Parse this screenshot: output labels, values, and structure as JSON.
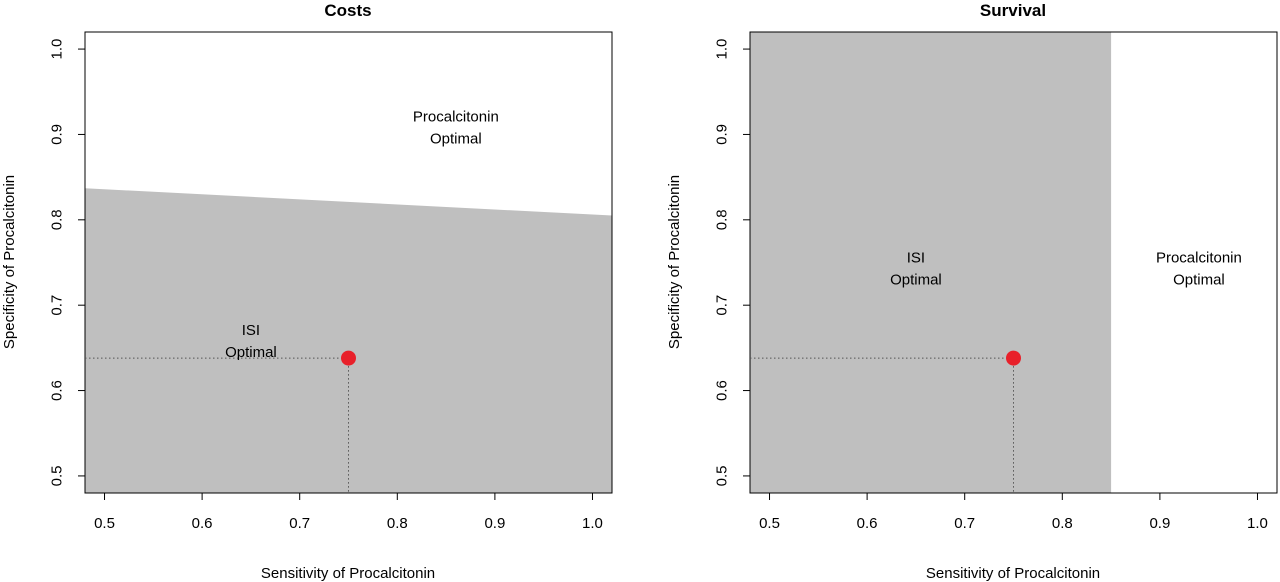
{
  "chart_data": [
    {
      "type": "scatter",
      "title": "Costs",
      "xlabel": "Sensitivity of Procalcitonin",
      "ylabel": "Specificity of Procalcitonin",
      "xlim": [
        0.48,
        1.02
      ],
      "ylim": [
        0.48,
        1.02
      ],
      "x_ticks": [
        "0.5",
        "0.6",
        "0.7",
        "0.8",
        "0.9",
        "1.0"
      ],
      "y_ticks": [
        "0.5",
        "0.6",
        "0.7",
        "0.8",
        "0.9",
        "1.0"
      ],
      "shaded_region": {
        "color": "#bfbfbf",
        "boundary": [
          [
            0.48,
            0.837
          ],
          [
            1.02,
            0.805
          ]
        ],
        "side": "below"
      },
      "region_labels": [
        {
          "lines": [
            "Procalcitonin",
            "Optimal"
          ],
          "x": 0.86,
          "y": 0.915
        },
        {
          "lines": [
            "ISI",
            "Optimal"
          ],
          "x": 0.65,
          "y": 0.665
        }
      ],
      "point": {
        "x": 0.75,
        "y": 0.638,
        "color": "#e8202a"
      },
      "grid": false
    },
    {
      "type": "scatter",
      "title": "Survival",
      "xlabel": "Sensitivity of Procalcitonin",
      "ylabel": "Specificity of Procalcitonin",
      "xlim": [
        0.48,
        1.02
      ],
      "ylim": [
        0.48,
        1.02
      ],
      "x_ticks": [
        "0.5",
        "0.6",
        "0.7",
        "0.8",
        "0.9",
        "1.0"
      ],
      "y_ticks": [
        "0.5",
        "0.6",
        "0.7",
        "0.8",
        "0.9",
        "1.0"
      ],
      "shaded_region": {
        "color": "#bfbfbf",
        "x_max": 0.85,
        "side": "left"
      },
      "region_labels": [
        {
          "lines": [
            "ISI",
            "Optimal"
          ],
          "x": 0.65,
          "y": 0.75
        },
        {
          "lines": [
            "Procalcitonin",
            "Optimal"
          ],
          "x": 0.94,
          "y": 0.75
        }
      ],
      "point": {
        "x": 0.75,
        "y": 0.638,
        "color": "#e8202a"
      },
      "grid": false
    }
  ]
}
